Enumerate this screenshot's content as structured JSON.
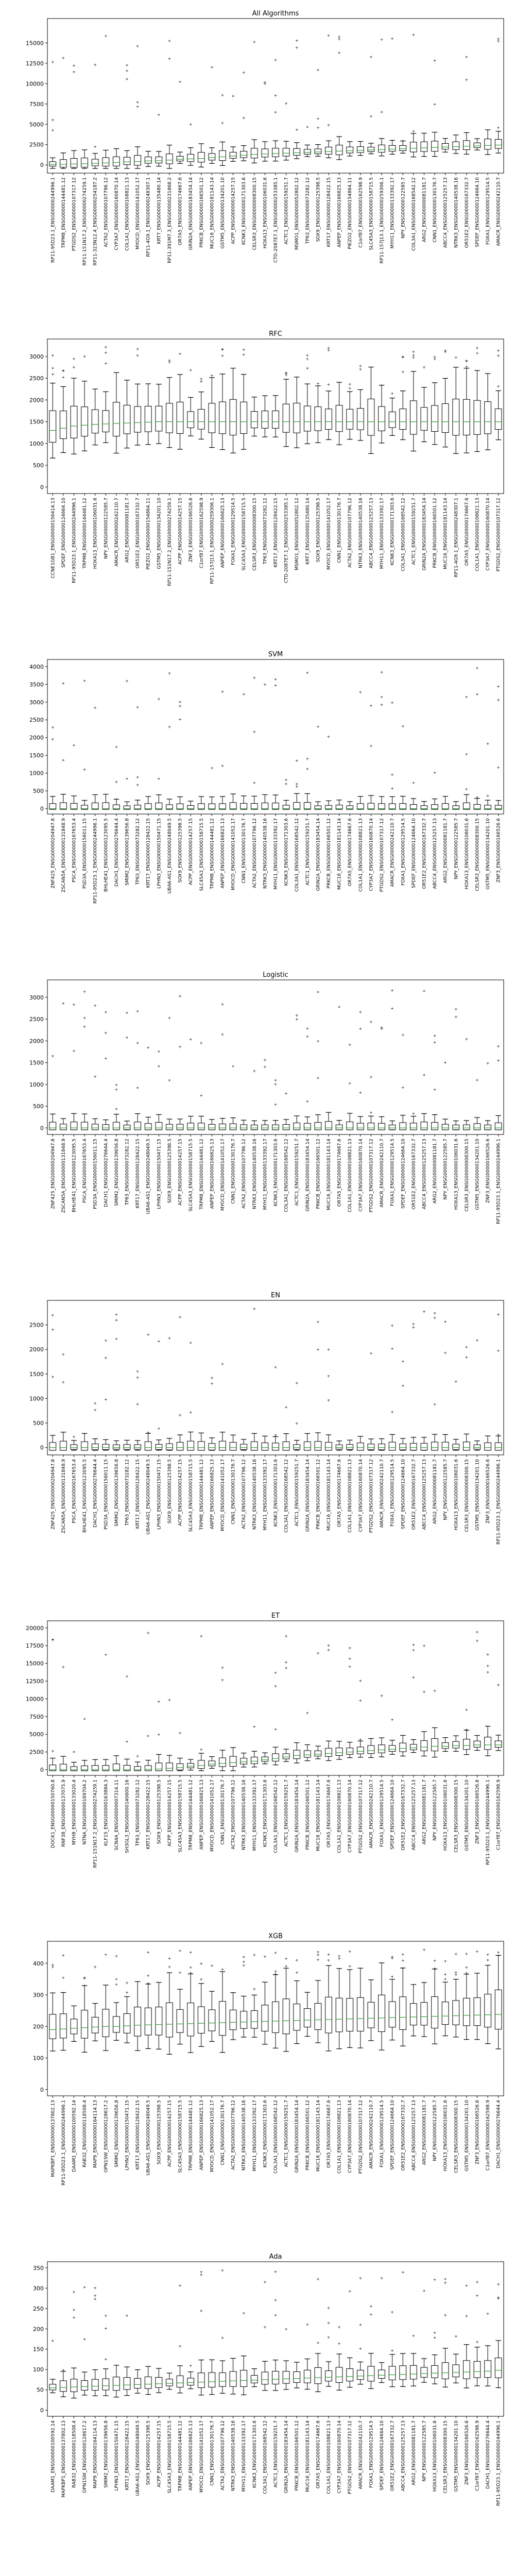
{
  "chart_data": [
    {
      "type": "box",
      "title": "All Algorithms",
      "xlabel": "",
      "ylabel": "",
      "ylim": [
        -1000,
        18000
      ],
      "yticks": [
        0,
        2500,
        5000,
        7500,
        10000,
        12500,
        15000
      ],
      "grid": false,
      "categories": [
        "RP11-95D23.1_ENSG00000244996.1",
        "TRPM8_ENSG00000144481.12",
        "PTGDS2_ENSG00000107317.12",
        "RP11-151N17.2_ENSG00000274259.1",
        "RP11-323N12.4_ENSG00000254187.2",
        "ACTA2_ENSG00000107796.12",
        "CYP3A7_ENSG00000160870.14",
        "COL1A1_ENSG00000108821.13",
        "MYOCD_ENSG00000141052.17",
        "RP11-4G9.1_ENSG00000248307.1",
        "KRT7_ENSG00000135480.14",
        "RP11-391M7.3_ENSG00000231868.2",
        "OR7A5_ENSG00000174667.6",
        "GRIN2A_ENSG00000183454.14",
        "PRKCB_ENSG00000166501.12",
        "MUC16_ENSG00000181143.14",
        "GSTM5_ENSG00000134201.10",
        "ACPP_ENSG00000014257.15",
        "KCNK3_ENSG00000171303.6",
        "CELSR3_ENSG00000008300.15",
        "HOXA13_ENSG00000106031.6",
        "CTD-2087E7.1_ENSG00000253385.1",
        "ACTC1_ENSG00000159251.7",
        "MSMO1_ENSG00000052802.12",
        "TP63_ENSG00000073282.12",
        "SOX9_ENSG00000125398.5",
        "KRT17_ENSG00000128422.15",
        "ANPEP_ENSG00000166825.13",
        "PIEZO2_ENSG00000154864.11",
        "C1orf87_ENSG00000162598.9",
        "SLC45A3_ENSG00000158715.5",
        "RP11-157J13.1_ENSG00000259306.1",
        "MYH11_ENSG00000133392.17",
        "NPY_ENSG00000122585.7",
        "COL3A1_ENSG00000168542.12",
        "ARG2_ENSG00000081181.7",
        "CNN1_ENSG00000130176.7",
        "ABCC4_ENSG00000125257.13",
        "NTRK3_ENSG00000140538.16",
        "OR51E2_ENSG00000167332.7",
        "SPDEF_ENSG00000124664.10",
        "FOXA1_ENSG00000129514.5",
        "AMACR_ENSG00000242110.7"
      ],
      "series": [],
      "medians": [
        60,
        80,
        120,
        150,
        200,
        250,
        300,
        380,
        420,
        500,
        520,
        600,
        700,
        750,
        800,
        900,
        1000,
        1100,
        1200,
        1300,
        1350,
        1400,
        1450,
        1500,
        1550,
        1600,
        1650,
        1700,
        1750,
        1800,
        1850,
        1900,
        1950,
        2000,
        2050,
        2100,
        2150,
        2200,
        2250,
        2300,
        2350,
        2400,
        2450
      ]
    },
    {
      "type": "box",
      "title": "RFC",
      "xlabel": "",
      "ylabel": "",
      "ylim": [
        -150,
        3400
      ],
      "yticks": [
        0,
        500,
        1000,
        1500,
        2000,
        2500,
        3000
      ],
      "grid": false,
      "categories": [
        "CCNE1GB1_ENSG00000156414.13",
        "SPDEF_ENSG00000124664.10",
        "RP11-95D23.1_ENSG00000244996.1",
        "TRPM8_ENSG00000144481.12",
        "HOXA13_ENSG00000106031.6",
        "NPY_ENSG00000122585.7",
        "AMACR_ENSG00000242110.7",
        "ARG2_ENSG00000081181.7",
        "OR51E2_ENSG00000167332.7",
        "PIEZO2_ENSG00000154864.11",
        "GSTM5_ENSG00000134201.10",
        "RP11-151N17.2_ENSG00000274259.1",
        "ACPP_ENSG00000014257.15",
        "ZNF3_ENSG00000166526.6",
        "C1orf87_ENSG00000162598.9",
        "RP11-157J13.1_ENSG00000259306.1",
        "ANPEP_ENSG00000166825.13",
        "FOXA1_ENSG00000129514.5",
        "SLC45A3_ENSG00000158715.5",
        "CELSR3_ENSG00000008300.15",
        "TP63_ENSG00000073282.12",
        "KRT17_ENSG00000128422.15",
        "CTD-2087E7.1_ENSG00000253385.1",
        "MSMO1_ENSG00000052802.12",
        "KRT7_ENSG00000135480.14",
        "SOX9_ENSG00000125398.5",
        "MYOCD_ENSG00000141052.17",
        "CNN1_ENSG00000130176.7",
        "ACTA2_ENSG00000107796.12",
        "NTRK3_ENSG00000140538.16",
        "ABCC4_ENSG00000125257.13",
        "MYH11_ENSG00000133392.17",
        "KCNK3_ENSG00000171303.6",
        "COL3A1_ENSG00000168542.12",
        "ACTC1_ENSG00000159251.7",
        "GRIN2A_ENSG00000183454.14",
        "PRKCB_ENSG00000166501.12",
        "MUC16_ENSG00000181143.14",
        "RP11-4G9.1_ENSG00000248307.1",
        "OR7A5_ENSG00000174667.6",
        "COL1A1_ENSG00000108821.13",
        "CYP3A7_ENSG00000160870.14",
        "PTGDS2_ENSG00000107317.12"
      ],
      "series": [],
      "medians": [
        1300,
        1350,
        1400,
        1420,
        1440,
        1450,
        1460,
        1470,
        1480,
        1490,
        1500,
        1500,
        1500,
        1500,
        1500,
        1500,
        1500,
        1500,
        1500,
        1500,
        1500,
        1500,
        1500,
        1500,
        1500,
        1500,
        1500,
        1500,
        1500,
        1500,
        1500,
        1500,
        1500,
        1500,
        1500,
        1500,
        1500,
        1500,
        1500,
        1500,
        1500,
        1500,
        1500
      ]
    },
    {
      "type": "box",
      "title": "SVM",
      "xlabel": "",
      "ylabel": "",
      "ylim": [
        -150,
        4200
      ],
      "yticks": [
        0,
        500,
        1000,
        1500,
        2000,
        2500,
        3000,
        3500,
        4000
      ],
      "grid": false,
      "categories": [
        "ZNF425_ENSG00000204947.8",
        "ZSCAN5A_ENSG00000131848.9",
        "PSCA_ENSG00000167653.4",
        "PSD3A_ENSG00000156011.15",
        "RP11-95D23.1_ENSG00000244996.1",
        "BHLHE41_ENSG00000123095.5",
        "DACH1_ENSG00000276644.4",
        "SMIM2_ENSG00000139656.8",
        "TP63_ENSG00000073282.12",
        "KRT17_ENSG00000128422.15",
        "LPHN3_ENSG00000150471.15",
        "UBA6-AS1_ENSG00000248049.5",
        "SOX9_ENSG00000125398.5",
        "ACPP_ENSG00000014257.15",
        "SLC45A3_ENSG00000158715.5",
        "TRPM8_ENSG00000144481.12",
        "ANPEP_ENSG00000166825.13",
        "MYOCD_ENSG00000141052.17",
        "CNN1_ENSG00000130176.7",
        "ACTA2_ENSG00000107796.12",
        "NTRK3_ENSG00000140538.16",
        "MYH11_ENSG00000133392.17",
        "KCNK3_ENSG00000171303.6",
        "COL3A1_ENSG00000168542.12",
        "ACTC1_ENSG00000159251.7",
        "GRIN2A_ENSG00000183454.14",
        "PRKCB_ENSG00000166501.12",
        "MUC16_ENSG00000181143.14",
        "OR7A5_ENSG00000174667.6",
        "COL1A1_ENSG00000108821.13",
        "CYP3A7_ENSG00000160870.14",
        "PTGDS2_ENSG00000107317.12",
        "AMACR_ENSG00000242110.7",
        "FOXA1_ENSG00000129514.5",
        "SPDEF_ENSG00000124664.10",
        "OR51E2_ENSG00000167332.7",
        "ABCC4_ENSG00000125257.13",
        "ARG2_ENSG00000081181.7",
        "NPY_ENSG00000122585.7",
        "HOXA13_ENSG00000106031.6",
        "CELSR3_ENSG00000008300.15",
        "GSTM5_ENSG00000134201.10",
        "ZNF3_ENSG00000166526.6"
      ],
      "series": [],
      "medians": [
        0,
        0,
        0,
        0,
        0,
        0,
        0,
        0,
        0,
        0,
        0,
        0,
        0,
        0,
        0,
        0,
        0,
        0,
        0,
        0,
        0,
        0,
        0,
        0,
        0,
        0,
        0,
        0,
        0,
        0,
        0,
        0,
        0,
        0,
        0,
        0,
        0,
        0,
        0,
        0,
        0,
        0,
        0
      ]
    },
    {
      "type": "box",
      "title": "Logistic",
      "xlabel": "",
      "ylabel": "",
      "ylim": [
        -150,
        3400
      ],
      "yticks": [
        0,
        500,
        1000,
        1500,
        2000,
        2500,
        3000
      ],
      "grid": false,
      "categories": [
        "ZNF425_ENSG00000204947.8",
        "ZSCAN5A_ENSG00000131848.9",
        "BHLHE41_ENSG00000123095.5",
        "PSCA_ENSG00000167653.4",
        "PSD3A_ENSG00000156011.15",
        "DACH1_ENSG00000276644.4",
        "SMIM2_ENSG00000139656.8",
        "TP63_ENSG00000073282.12",
        "KRT17_ENSG00000128422.15",
        "UBA6-AS1_ENSG00000248049.5",
        "LPHN3_ENSG00000150471.15",
        "SOX9_ENSG00000125398.5",
        "ACPP_ENSG00000014257.15",
        "SLC45A3_ENSG00000158715.5",
        "TRPM8_ENSG00000144481.12",
        "ANPEP_ENSG00000166825.13",
        "MYOCD_ENSG00000141052.17",
        "CNN1_ENSG00000130176.7",
        "ACTA2_ENSG00000107796.12",
        "NTRK3_ENSG00000140538.16",
        "MYH11_ENSG00000133392.17",
        "KCNK3_ENSG00000171303.6",
        "COL3A1_ENSG00000168542.12",
        "ACTC1_ENSG00000159251.7",
        "GRIN2A_ENSG00000183454.14",
        "PRKCB_ENSG00000166501.12",
        "MUC16_ENSG00000181143.14",
        "OR7A5_ENSG00000174667.6",
        "COL1A1_ENSG00000108821.13",
        "CYP3A7_ENSG00000160870.14",
        "PTGDS2_ENSG00000107317.12",
        "AMACR_ENSG00000242110.7",
        "FOXA1_ENSG00000129514.5",
        "SPDEF_ENSG00000124664.10",
        "OR51E2_ENSG00000167332.7",
        "ABCC4_ENSG00000125257.13",
        "ARG2_ENSG00000081181.7",
        "NPY_ENSG00000122585.7",
        "HOXA13_ENSG00000106031.6",
        "CELSR3_ENSG00000008300.15",
        "GSTM5_ENSG00000134201.10",
        "ZNF3_ENSG00000166526.6",
        "RP11-95D23.1_ENSG00000244996.1"
      ],
      "series": [],
      "medians": [
        0,
        0,
        0,
        0,
        0,
        0,
        0,
        0,
        0,
        0,
        0,
        0,
        0,
        0,
        0,
        0,
        0,
        0,
        0,
        0,
        0,
        0,
        0,
        0,
        0,
        0,
        0,
        0,
        0,
        0,
        0,
        0,
        0,
        0,
        0,
        0,
        0,
        0,
        0,
        0,
        0,
        0,
        0
      ]
    },
    {
      "type": "box",
      "title": "EN",
      "xlabel": "",
      "ylabel": "",
      "ylim": [
        -150,
        3000
      ],
      "yticks": [
        0,
        500,
        1000,
        1500,
        2000,
        2500
      ],
      "grid": false,
      "categories": [
        "ZNF425_ENSG00000204947.8",
        "ZSCAN5A_ENSG00000131848.9",
        "PSCA_ENSG00000167653.4",
        "BHLHE41_ENSG00000123095.5",
        "DACH1_ENSG00000276644.4",
        "PSD3A_ENSG00000156011.15",
        "SMIM2_ENSG00000139656.8",
        "TP63_ENSG00000073282.12",
        "KRT17_ENSG00000128422.15",
        "UBA6-AS1_ENSG00000248049.5",
        "LPHN3_ENSG00000150471.15",
        "SOX9_ENSG00000125398.5",
        "ACPP_ENSG00000014257.15",
        "SLC45A3_ENSG00000158715.5",
        "TRPM8_ENSG00000144481.12",
        "ANPEP_ENSG00000166825.13",
        "MYOCD_ENSG00000141052.17",
        "CNN1_ENSG00000130176.7",
        "ACTA2_ENSG00000107796.12",
        "NTRK3_ENSG00000140538.16",
        "MYH11_ENSG00000133392.17",
        "KCNK3_ENSG00000171303.6",
        "COL3A1_ENSG00000168542.12",
        "ACTC1_ENSG00000159251.7",
        "GRIN2A_ENSG00000183454.14",
        "PRKCB_ENSG00000166501.12",
        "MUC16_ENSG00000181143.14",
        "OR7A5_ENSG00000174667.6",
        "COL1A1_ENSG00000108821.13",
        "CYP3A7_ENSG00000160870.14",
        "PTGDS2_ENSG00000107317.12",
        "AMACR_ENSG00000242110.7",
        "FOXA1_ENSG00000129514.5",
        "SPDEF_ENSG00000124664.10",
        "OR51E2_ENSG00000167332.7",
        "ABCC4_ENSG00000125257.13",
        "ARG2_ENSG00000081181.7",
        "NPY_ENSG00000122585.7",
        "HOXA13_ENSG00000106031.6",
        "CELSR3_ENSG00000008300.15",
        "GSTM5_ENSG00000134201.10",
        "ZNF3_ENSG00000166526.6",
        "RP11-95D23.1_ENSG00000244996.1"
      ],
      "series": [],
      "medians": [
        0,
        0,
        0,
        0,
        0,
        0,
        0,
        0,
        0,
        0,
        0,
        0,
        0,
        0,
        0,
        0,
        0,
        0,
        0,
        0,
        0,
        0,
        0,
        0,
        0,
        0,
        0,
        0,
        0,
        0,
        0,
        0,
        0,
        0,
        0,
        0,
        0,
        0,
        0,
        0,
        0,
        0,
        0
      ]
    },
    {
      "type": "box",
      "title": "ET",
      "xlabel": "",
      "ylabel": "",
      "ylim": [
        -800,
        21000
      ],
      "yticks": [
        0,
        2500,
        5000,
        7500,
        10000,
        12500,
        15000,
        17500,
        20000
      ],
      "grid": false,
      "categories": [
        "DOCK1_ENSG00000150760.8",
        "RNF38_ENSG00000137075.9",
        "MYH8_ENSG00000133020.4",
        "NTNA_ENSG00000169704.2",
        "RP11-151N17.2_ENSG00000274259.1",
        "KLF15_ENSG00000163884.3",
        "SCN4A_ENSG00000007314.11",
        "SH3GL3_ENSG00000140600.16",
        "TP63_ENSG00000073282.12",
        "KRT17_ENSG00000128422.15",
        "SOX9_ENSG00000125398.5",
        "ACPP_ENSG00000014257.15",
        "SLC45A3_ENSG00000158715.5",
        "TRPM8_ENSG00000144481.12",
        "ANPEP_ENSG00000166825.13",
        "MYOCD_ENSG00000141052.17",
        "CNN1_ENSG00000130176.7",
        "ACTA2_ENSG00000107796.12",
        "NTRK3_ENSG00000140538.16",
        "MYH11_ENSG00000133392.17",
        "KCNK3_ENSG00000171303.6",
        "COL3A1_ENSG00000168542.12",
        "ACTC1_ENSG00000159251.7",
        "GRIN2A_ENSG00000183454.14",
        "PRKCB_ENSG00000166501.12",
        "MUC16_ENSG00000181143.14",
        "OR7A5_ENSG00000174667.6",
        "COL1A1_ENSG00000108821.13",
        "CYP3A7_ENSG00000160870.14",
        "PTGDS2_ENSG00000107317.12",
        "AMACR_ENSG00000242110.7",
        "FOXA1_ENSG00000129514.5",
        "SPDEF_ENSG00000124664.10",
        "OR51E2_ENSG00000167332.7",
        "ABCC4_ENSG00000125257.13",
        "ARG2_ENSG00000081181.7",
        "NPY_ENSG00000122585.7",
        "HOXA13_ENSG00000106031.6",
        "CELSR3_ENSG00000008300.15",
        "GSTM5_ENSG00000134201.10",
        "ZNF3_ENSG00000166526.6",
        "RP11-95D23.1_ENSG00000244996.1",
        "C1orf87_ENSG00000162598.9"
      ],
      "series": [],
      "medians": [
        0,
        0,
        0,
        0,
        0,
        0,
        0,
        0,
        0,
        50,
        100,
        200,
        300,
        500,
        600,
        800,
        900,
        1000,
        1100,
        1200,
        1400,
        1600,
        1800,
        2000,
        2100,
        2200,
        2300,
        2400,
        2500,
        2600,
        2700,
        2800,
        2900,
        3000,
        3100,
        3200,
        3300,
        3300,
        3400,
        3400,
        3500,
        3500,
        3500
      ]
    },
    {
      "type": "box",
      "title": "XGB",
      "xlabel": "",
      "ylabel": "",
      "ylim": [
        -20,
        470
      ],
      "yticks": [
        0,
        100,
        200,
        300,
        400
      ],
      "grid": false,
      "categories": [
        "MAPKBP1_ENSG00000137802.13",
        "RP11-95D23.1_ENSG00000244996.1",
        "DAAM1_ENSG00000100592.14",
        "RAB32_ENSG00000118508.4",
        "MAP9_ENSG00000164114.13",
        "OPN1SW_ENSG00000128617.2",
        "SMIM2_ENSG00000139656.8",
        "LPHN3_ENSG00000150471.15",
        "KRT17_ENSG00000128422.15",
        "UBA6-AS1_ENSG00000248049.5",
        "SOX9_ENSG00000125398.5",
        "ACPP_ENSG00000014257.15",
        "SLC45A3_ENSG00000158715.5",
        "TRPM8_ENSG00000144481.12",
        "ANPEP_ENSG00000166825.13",
        "MYOCD_ENSG00000141052.17",
        "CNN1_ENSG00000130176.7",
        "ACTA2_ENSG00000107796.12",
        "NTRK3_ENSG00000140538.16",
        "MYH11_ENSG00000133392.17",
        "KCNK3_ENSG00000171303.6",
        "COL3A1_ENSG00000168542.12",
        "ACTC1_ENSG00000159251.7",
        "GRIN2A_ENSG00000183454.14",
        "PRKCB_ENSG00000166501.12",
        "MUC16_ENSG00000181143.14",
        "OR7A5_ENSG00000174667.6",
        "COL1A1_ENSG00000108821.13",
        "CYP3A7_ENSG00000160870.14",
        "PTGDS2_ENSG00000107317.12",
        "AMACR_ENSG00000242110.7",
        "FOXA1_ENSG00000129514.5",
        "SPDEF_ENSG00000124664.10",
        "OR51E2_ENSG00000167332.7",
        "ABCC4_ENSG00000125257.13",
        "ARG2_ENSG00000081181.7",
        "NPY_ENSG00000122585.7",
        "HOXA13_ENSG00000106031.6",
        "CELSR3_ENSG00000008300.15",
        "GSTM5_ENSG00000134201.10",
        "ZNF3_ENSG00000166526.6",
        "C1orf87_ENSG00000162598.9",
        "DACH1_ENSG00000276644.4"
      ],
      "series": [],
      "medians": [
        190,
        192,
        194,
        196,
        198,
        200,
        200,
        202,
        204,
        205,
        206,
        207,
        208,
        209,
        210,
        211,
        212,
        213,
        214,
        215,
        216,
        217,
        218,
        219,
        220,
        221,
        222,
        223,
        224,
        225,
        226,
        227,
        228,
        229,
        230,
        231,
        232,
        233,
        234,
        235,
        236,
        237,
        238
      ]
    },
    {
      "type": "box",
      "title": "Ada",
      "xlabel": "",
      "ylabel": "",
      "ylim": [
        -15,
        365
      ],
      "yticks": [
        0,
        50,
        100,
        150,
        200,
        250,
        300,
        350
      ],
      "grid": false,
      "categories": [
        "DAAM1_ENSG00000100592.14",
        "MAPKBP1_ENSG00000137802.13",
        "RAB32_ENSG00000118508.4",
        "OPN1SW_ENSG00000128617.2",
        "MAP9_ENSG00000164114.13",
        "SMIM2_ENSG00000139656.8",
        "LPHN3_ENSG00000150471.15",
        "KRT17_ENSG00000128422.15",
        "UBA6-AS1_ENSG00000248049.5",
        "SOX9_ENSG00000125398.5",
        "ACPP_ENSG00000014257.15",
        "SLC45A3_ENSG00000158715.5",
        "TRPM8_ENSG00000144481.12",
        "ANPEP_ENSG00000166825.13",
        "MYOCD_ENSG00000141052.17",
        "CNN1_ENSG00000130176.7",
        "ACTA2_ENSG00000107796.12",
        "NTRK3_ENSG00000140538.16",
        "MYH11_ENSG00000133392.17",
        "KCNK3_ENSG00000171303.6",
        "COL3A1_ENSG00000168542.12",
        "ACTC1_ENSG00000159251.7",
        "GRIN2A_ENSG00000183454.14",
        "PRKCB_ENSG00000166501.12",
        "MUC16_ENSG00000181143.14",
        "OR7A5_ENSG00000174667.6",
        "COL1A1_ENSG00000108821.13",
        "CYP3A7_ENSG00000160870.14",
        "PTGDS2_ENSG00000107317.12",
        "AMACR_ENSG00000242110.7",
        "FOXA1_ENSG00000129514.5",
        "SPDEF_ENSG00000124664.10",
        "OR51E2_ENSG00000167332.7",
        "ABCC4_ENSG00000125257.13",
        "ARG2_ENSG00000081181.7",
        "NPY_ENSG00000122585.7",
        "HOXA13_ENSG00000106031.6",
        "CELSR3_ENSG00000008300.15",
        "GSTM5_ENSG00000134201.10",
        "ZNF3_ENSG00000166526.6",
        "C1orf87_ENSG00000162598.9",
        "DACH1_ENSG00000276644.4",
        "RP11-95D23.1_ENSG00000244996.1"
      ],
      "series": [],
      "medians": [
        55,
        56,
        57,
        58,
        59,
        60,
        61,
        62,
        63,
        64,
        65,
        66,
        67,
        68,
        69,
        70,
        71,
        72,
        73,
        74,
        75,
        76,
        77,
        78,
        79,
        80,
        81,
        82,
        83,
        84,
        85,
        86,
        87,
        88,
        89,
        90,
        91,
        92,
        93,
        94,
        95,
        96,
        98
      ]
    }
  ]
}
